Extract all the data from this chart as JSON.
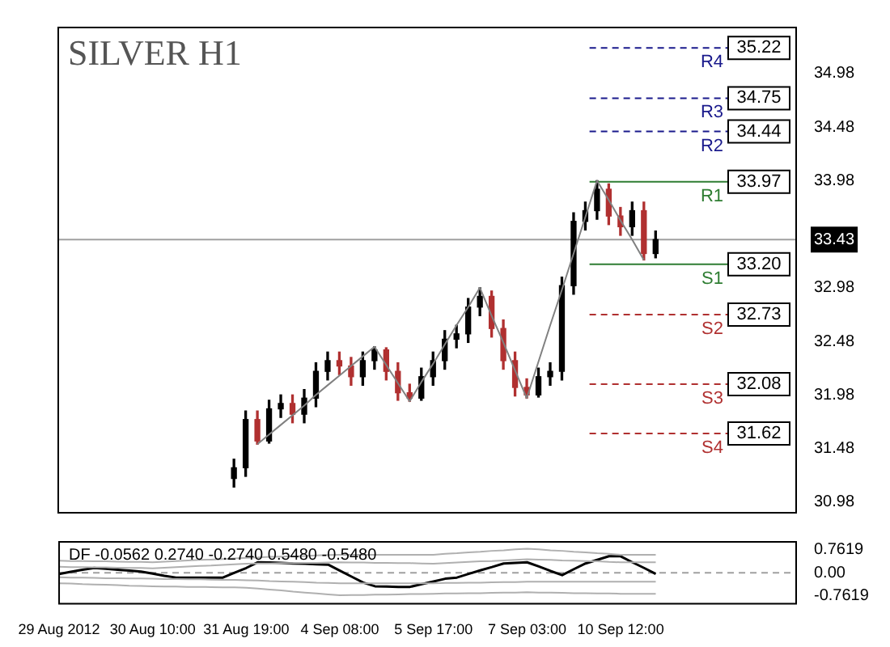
{
  "chart_data": [
    {
      "type": "candlestick",
      "title": "SILVER H1",
      "categories": [
        null,
        null,
        null,
        null,
        null,
        null,
        null,
        null,
        null,
        null,
        null,
        null,
        null,
        null,
        null,
        null,
        null,
        null,
        null,
        null,
        null,
        null,
        null,
        null,
        null,
        null,
        null,
        null,
        null,
        null,
        null,
        null,
        null,
        null,
        null,
        null,
        null,
        null,
        null,
        null,
        null,
        null,
        null,
        null,
        null,
        null,
        null,
        null,
        null,
        null,
        null,
        null,
        null,
        null,
        null,
        null,
        null,
        null,
        null,
        null,
        null,
        null,
        null,
        null
      ],
      "ohlc": [
        null,
        null,
        null,
        null,
        null,
        null,
        null,
        null,
        null,
        null,
        null,
        null,
        null,
        null,
        null,
        [
          31.2,
          31.38,
          31.12,
          31.3
        ],
        [
          31.3,
          31.83,
          31.22,
          31.75
        ],
        [
          31.75,
          31.83,
          31.52,
          31.55
        ],
        [
          31.55,
          31.93,
          31.53,
          31.85
        ],
        [
          31.85,
          31.98,
          31.77,
          31.9
        ],
        [
          31.9,
          31.98,
          31.72,
          31.8
        ],
        [
          31.8,
          32.03,
          31.72,
          31.95
        ],
        [
          31.95,
          32.28,
          31.87,
          32.2
        ],
        [
          32.2,
          32.38,
          32.12,
          32.3
        ],
        [
          32.3,
          32.38,
          32.17,
          32.25
        ],
        [
          32.25,
          32.33,
          32.07,
          32.15
        ],
        [
          32.15,
          32.38,
          32.07,
          32.3
        ],
        [
          32.3,
          32.43,
          32.22,
          32.4
        ],
        [
          32.4,
          32.42,
          32.12,
          32.2
        ],
        [
          32.2,
          32.28,
          31.93,
          32.0
        ],
        [
          32.0,
          32.08,
          31.92,
          31.95
        ],
        [
          31.95,
          32.23,
          31.93,
          32.15
        ],
        [
          32.15,
          32.38,
          32.07,
          32.3
        ],
        [
          32.3,
          32.58,
          32.22,
          32.5
        ],
        [
          32.5,
          32.63,
          32.42,
          32.55
        ],
        [
          32.55,
          32.88,
          32.47,
          32.8
        ],
        [
          32.8,
          32.98,
          32.72,
          32.9
        ],
        [
          32.9,
          32.95,
          32.52,
          32.6
        ],
        [
          32.6,
          32.68,
          32.22,
          32.3
        ],
        [
          32.3,
          32.38,
          31.97,
          32.05
        ],
        [
          32.05,
          32.13,
          31.95,
          31.98
        ],
        [
          31.98,
          32.23,
          31.96,
          32.15
        ],
        [
          32.15,
          32.28,
          32.07,
          32.2
        ],
        [
          32.2,
          33.08,
          32.12,
          33.0
        ],
        [
          33.0,
          33.68,
          32.92,
          33.6
        ],
        [
          33.6,
          33.78,
          33.52,
          33.7
        ],
        [
          33.7,
          33.98,
          33.62,
          33.9
        ],
        [
          33.9,
          33.95,
          33.57,
          33.65
        ],
        [
          33.65,
          33.73,
          33.47,
          33.55
        ],
        [
          33.55,
          33.78,
          33.47,
          33.7
        ],
        [
          33.7,
          33.78,
          33.24,
          33.3
        ],
        [
          33.3,
          33.51,
          33.26,
          33.43
        ],
        null,
        null,
        null,
        null,
        null,
        null,
        null,
        null,
        null,
        null,
        null,
        null
      ],
      "colors": [
        null,
        null,
        null,
        null,
        null,
        null,
        null,
        null,
        null,
        null,
        null,
        null,
        null,
        null,
        null,
        "#000000",
        "#000000",
        "#b03030",
        "#000000",
        "#000000",
        "#b03030",
        "#000000",
        "#000000",
        "#000000",
        "#b03030",
        "#b03030",
        "#000000",
        "#000000",
        "#b03030",
        "#b03030",
        "#b03030",
        "#000000",
        "#000000",
        "#000000",
        "#000000",
        "#000000",
        "#000000",
        "#b03030",
        "#b03030",
        "#b03030",
        "#b03030",
        "#000000",
        "#000000",
        "#000000",
        "#000000",
        "#000000",
        "#000000",
        "#b03030",
        "#b03030",
        "#000000",
        "#b03030",
        "#000000",
        null,
        null,
        null,
        null,
        null,
        null,
        null,
        null,
        null,
        null,
        null,
        null
      ],
      "annotations": [
        {
          "text": "35.22",
          "y": 35.22
        },
        {
          "text": "34.75",
          "y": 34.75
        },
        {
          "text": "34.44",
          "y": 34.44
        },
        {
          "text": "33.97",
          "y": 33.97
        },
        {
          "text": "33.20",
          "y": 33.2
        },
        {
          "text": "32.73",
          "y": 32.73
        },
        {
          "text": "32.08",
          "y": 32.08
        },
        {
          "text": "31.62",
          "y": 31.62
        }
      ],
      "series": [
        {
          "type": "line",
          "color": "#808080",
          "values": [
            null,
            null,
            null,
            null,
            null,
            null,
            null,
            null,
            null,
            null,
            null,
            null,
            null,
            null,
            null,
            null,
            null,
            31.52,
            31.61,
            31.7,
            31.79,
            31.88,
            31.98,
            32.07,
            32.16,
            32.25,
            32.34,
            32.43,
            32.26,
            32.09,
            31.92,
            32.1,
            32.27,
            32.45,
            32.63,
            32.8,
            32.98,
            32.72,
            32.47,
            32.21,
            31.95,
            32.29,
            32.63,
            32.96,
            33.3,
            33.64,
            33.98,
            33.8,
            33.61,
            33.43,
            33.24,
            null,
            null,
            null,
            null,
            null,
            null,
            null,
            null,
            null,
            null,
            null,
            null,
            null
          ]
        }
      ],
      "ylim": [
        30.88,
        35.41
      ],
      "yticks": [
        30.98,
        31.48,
        31.98,
        32.48,
        32.98,
        33.43,
        33.98,
        34.48,
        34.98
      ],
      "ref_lines": [
        {
          "axis": "y",
          "value": 35.22,
          "label": "R4",
          "color": "#1a1a8c",
          "line_style": "dashed"
        },
        {
          "axis": "y",
          "value": 34.75,
          "label": "R3",
          "color": "#1a1a8c",
          "line_style": "dashed"
        },
        {
          "axis": "y",
          "value": 34.44,
          "label": "R2",
          "color": "#1a1a8c",
          "line_style": "dashed"
        },
        {
          "axis": "y",
          "value": 33.97,
          "label": "R1",
          "color": "#2e7d32",
          "line_style": "solid"
        },
        {
          "axis": "y",
          "value": 33.2,
          "label": "S1",
          "color": "#2e7d32",
          "line_style": "solid"
        },
        {
          "axis": "y",
          "value": 32.73,
          "label": "S2",
          "color": "#b03030",
          "line_style": "dashed"
        },
        {
          "axis": "y",
          "value": 32.08,
          "label": "S3",
          "color": "#b03030",
          "line_style": "dashed"
        },
        {
          "axis": "y",
          "value": 31.62,
          "label": "S4",
          "color": "#b03030",
          "line_style": "dashed"
        },
        {
          "axis": "y",
          "value": 33.43,
          "color": "#a0a0a0",
          "line_style": "solid"
        }
      ]
    },
    {
      "type": "line",
      "title": "DF -0.0562 0.2740 -0.2740 0.5480 -0.5480",
      "categories": [
        "29 Aug 2012",
        null,
        null,
        null,
        null,
        null,
        null,
        null,
        "30 Aug 10:00",
        null,
        null,
        null,
        null,
        null,
        null,
        null,
        "31 Aug 19:00",
        null,
        null,
        null,
        null,
        null,
        null,
        null,
        "4 Sep 08:00",
        null,
        null,
        null,
        null,
        null,
        null,
        null,
        "5 Sep 17:00",
        null,
        null,
        null,
        null,
        null,
        null,
        null,
        "7 Sep 03:00",
        null,
        null,
        null,
        null,
        null,
        null,
        null,
        "10 Sep 12:00",
        null,
        null,
        null,
        null,
        null,
        null,
        null,
        null,
        null,
        null,
        null,
        null,
        null,
        null,
        null
      ],
      "series": [
        {
          "color": "#b0b0b0",
          "values": [
            0.4,
            0.39,
            0.39,
            0.38,
            0.38,
            0.37,
            0.36,
            0.36,
            0.35,
            0.37,
            0.39,
            0.41,
            0.43,
            0.44,
            0.46,
            0.48,
            0.5,
            0.51,
            0.53,
            0.54,
            0.55,
            0.56,
            0.58,
            0.59,
            0.6,
            0.6,
            0.6,
            0.6,
            0.6,
            0.6,
            0.6,
            0.6,
            0.6,
            0.63,
            0.65,
            0.68,
            0.7,
            0.73,
            0.75,
            0.78,
            0.8,
            0.78,
            0.75,
            0.73,
            0.7,
            0.68,
            0.65,
            0.63,
            0.6,
            0.6,
            0.6,
            0.6,
            null,
            null,
            null,
            null,
            null,
            null,
            null,
            null,
            null,
            null,
            null,
            null
          ]
        },
        {
          "color": "#b0b0b0",
          "values": [
            0.2,
            0.19,
            0.19,
            0.18,
            0.18,
            0.17,
            0.16,
            0.16,
            0.15,
            0.17,
            0.19,
            0.21,
            0.23,
            0.24,
            0.26,
            0.28,
            0.3,
            0.31,
            0.31,
            0.32,
            0.32,
            0.33,
            0.33,
            0.34,
            0.35,
            0.34,
            0.34,
            0.33,
            0.33,
            0.32,
            0.32,
            0.31,
            0.3,
            0.32,
            0.34,
            0.36,
            0.38,
            0.39,
            0.41,
            0.43,
            0.45,
            0.44,
            0.43,
            0.41,
            0.4,
            0.39,
            0.38,
            0.36,
            0.35,
            0.35,
            0.35,
            0.35,
            null,
            null,
            null,
            null,
            null,
            null,
            null,
            null,
            null,
            null,
            null,
            null
          ]
        },
        {
          "color": "#b0b0b0",
          "values": [
            -0.15,
            -0.16,
            -0.16,
            -0.17,
            -0.18,
            -0.18,
            -0.19,
            -0.19,
            -0.2,
            -0.21,
            -0.21,
            -0.22,
            -0.22,
            -0.23,
            -0.24,
            -0.24,
            -0.25,
            -0.26,
            -0.28,
            -0.29,
            -0.3,
            -0.31,
            -0.33,
            -0.34,
            -0.35,
            -0.35,
            -0.35,
            -0.35,
            -0.35,
            -0.35,
            -0.35,
            -0.35,
            -0.35,
            -0.34,
            -0.34,
            -0.33,
            -0.33,
            -0.32,
            -0.31,
            -0.31,
            -0.3,
            -0.3,
            -0.3,
            -0.3,
            -0.3,
            -0.3,
            -0.3,
            -0.3,
            -0.3,
            -0.3,
            -0.3,
            -0.3,
            null,
            null,
            null,
            null,
            null,
            null,
            null,
            null,
            null,
            null,
            null,
            null
          ]
        },
        {
          "color": "#b0b0b0",
          "values": [
            -0.35,
            -0.36,
            -0.38,
            -0.39,
            -0.4,
            -0.41,
            -0.43,
            -0.44,
            -0.45,
            -0.46,
            -0.46,
            -0.47,
            -0.47,
            -0.48,
            -0.49,
            -0.49,
            -0.5,
            -0.53,
            -0.56,
            -0.59,
            -0.63,
            -0.66,
            -0.69,
            -0.72,
            -0.75,
            -0.74,
            -0.74,
            -0.73,
            -0.73,
            -0.72,
            -0.71,
            -0.71,
            -0.7,
            -0.69,
            -0.69,
            -0.68,
            -0.68,
            -0.67,
            -0.66,
            -0.66,
            -0.65,
            -0.66,
            -0.66,
            -0.67,
            -0.68,
            -0.68,
            -0.69,
            -0.69,
            -0.7,
            -0.7,
            -0.7,
            -0.7,
            null,
            null,
            null,
            null,
            null,
            null,
            null,
            null,
            null,
            null,
            null,
            null
          ]
        },
        {
          "color": "#000000",
          "values": [
            -0.04,
            0.03,
            0.1,
            0.16,
            0.13,
            0.1,
            0.07,
            0.04,
            -0.03,
            -0.1,
            -0.16,
            -0.16,
            -0.16,
            -0.16,
            -0.16,
            0.0,
            0.16,
            0.35,
            0.34,
            0.33,
            0.31,
            0.3,
            0.28,
            0.27,
            0.07,
            -0.13,
            -0.33,
            -0.45,
            -0.46,
            -0.47,
            -0.47,
            -0.38,
            -0.29,
            -0.2,
            -0.16,
            -0.04,
            0.08,
            0.19,
            0.31,
            0.33,
            0.35,
            0.21,
            0.06,
            -0.08,
            0.12,
            0.31,
            0.43,
            0.55,
            0.55,
            0.35,
            0.16,
            -0.04,
            null,
            null,
            null,
            null,
            null,
            null,
            null,
            null,
            null,
            null,
            null,
            null
          ]
        }
      ],
      "ylim": [
        -1.03,
        1.03
      ],
      "yticks": [
        0.7619,
        {
          "value": 0,
          "label": "0.00"
        },
        -0.7619
      ],
      "ref_lines": [
        {
          "axis": "y",
          "value": 0,
          "color": "#a0a0a0",
          "line_style": "dashed"
        }
      ]
    }
  ]
}
